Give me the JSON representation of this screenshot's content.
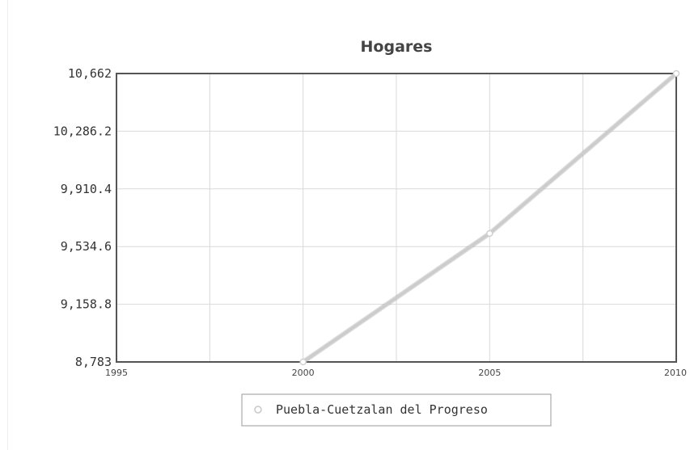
{
  "chart_data": {
    "type": "line",
    "title": "Hogares",
    "xlabel": "",
    "ylabel": "",
    "xlim": [
      1995,
      2010
    ],
    "ylim": [
      8783,
      10662
    ],
    "x_ticks": [
      "1995",
      "2000",
      "2005",
      "2010"
    ],
    "y_ticks": [
      "8,783",
      "9,158.8",
      "9,534.6",
      "9,910.4",
      "10,286.2",
      "10,662"
    ],
    "grid": true,
    "legend_position": "bottom",
    "series": [
      {
        "name": "Puebla-Cuetzalan del Progreso",
        "color": "#cccccc",
        "x": [
          2000,
          2005,
          2010
        ],
        "y": [
          8783,
          9620,
          10662
        ]
      }
    ]
  }
}
